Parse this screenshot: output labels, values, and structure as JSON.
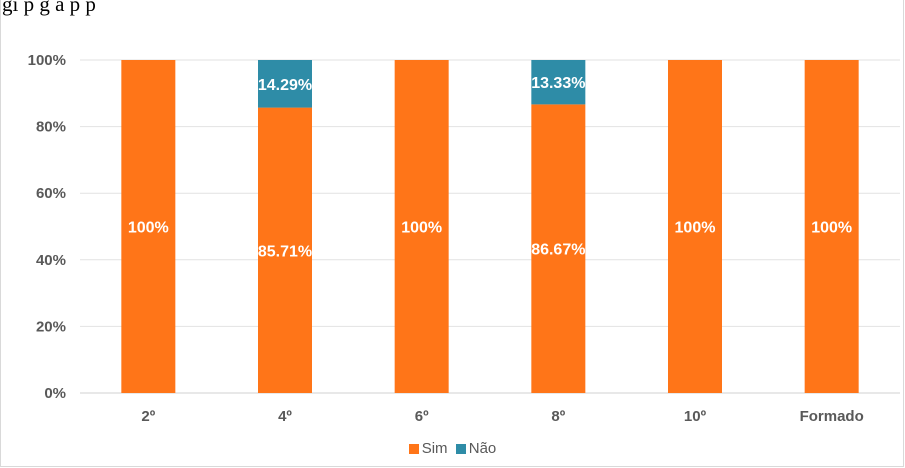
{
  "title_fragment": "gi                                           p  g  ã      p          p",
  "chart_data": {
    "type": "bar",
    "stacked": true,
    "percent": true,
    "categories": [
      "2º",
      "4º",
      "6º",
      "8º",
      "10º",
      "Formado"
    ],
    "series": [
      {
        "name": "Sim",
        "color": "#FF7518",
        "values": [
          100,
          85.71,
          100,
          86.67,
          100,
          100
        ],
        "labels": [
          "100%",
          "85.71%",
          "100%",
          "86.67%",
          "100%",
          "100%"
        ]
      },
      {
        "name": "Não",
        "color": "#2E8CA7",
        "values": [
          0,
          14.29,
          0,
          13.33,
          0,
          0
        ],
        "labels": [
          "",
          "14.29%",
          "",
          "13.33%",
          "",
          ""
        ]
      }
    ],
    "yticks": [
      "0%",
      "20%",
      "40%",
      "60%",
      "80%",
      "100%"
    ],
    "ylim": [
      0,
      100
    ],
    "grid": true,
    "legend_position": "bottom"
  }
}
